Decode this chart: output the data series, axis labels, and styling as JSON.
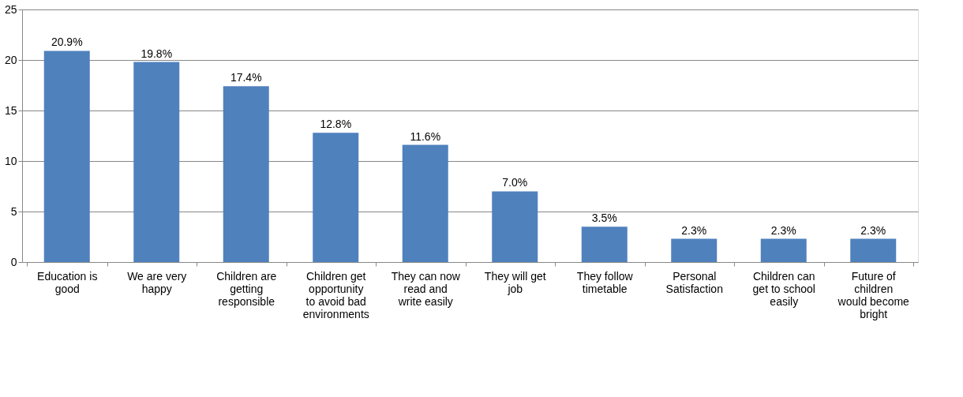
{
  "chart_data": {
    "type": "bar",
    "categories": [
      "Education is good",
      "We are very happy",
      "Children are getting responsible",
      "Children get opportunity to avoid bad environments",
      "They can now read and write easily",
      "They will get job",
      "They follow timetable",
      "Personal Satisfaction",
      "Children can get to school easily",
      "Future of children would become bright"
    ],
    "values": [
      20.9,
      19.8,
      17.4,
      12.8,
      11.6,
      7.0,
      3.5,
      2.3,
      2.3,
      2.3
    ],
    "value_labels": [
      "20.9%",
      "19.8%",
      "17.4%",
      "12.8%",
      "11.6%",
      "7.0%",
      "3.5%",
      "2.3%",
      "2.3%",
      "2.3%"
    ],
    "color": "#4f81bd",
    "ylim": [
      0,
      25
    ],
    "yticks": [
      0,
      5,
      10,
      15,
      20,
      25
    ],
    "grid": "y"
  }
}
